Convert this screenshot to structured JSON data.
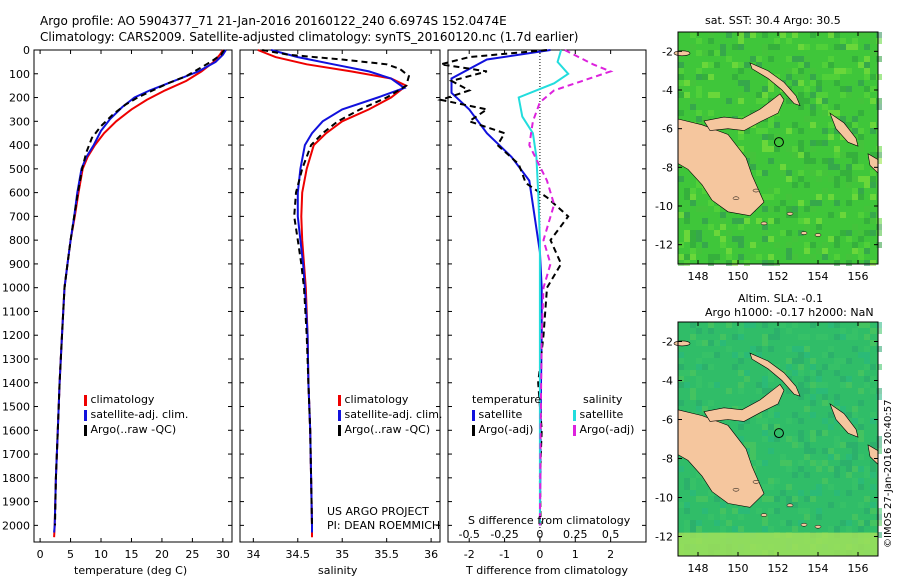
{
  "header": {
    "line1": "Argo profile: AO 5904377_71 21-Jan-2016 20160122_240 6.6974S 152.0474E",
    "line2": "Climatology: CARS2009. Satellite-adjusted climatology: synTS_20160120.nc (1.7d earlier)"
  },
  "chart_data": [
    {
      "type": "line",
      "id": "temperature",
      "xlabel": "temperature (deg C)",
      "xlim": [
        -1,
        31.5
      ],
      "ylim": [
        2070,
        0
      ],
      "xticks": [
        0,
        5,
        10,
        15,
        20,
        25,
        30
      ],
      "yticks": [
        0,
        100,
        200,
        300,
        400,
        500,
        600,
        700,
        800,
        900,
        1000,
        1100,
        1200,
        1300,
        1400,
        1500,
        1600,
        1700,
        1800,
        1900,
        2000
      ],
      "legend": [
        "climatology",
        "satellite-adj. clim.",
        "Argo(..raw -QC)"
      ],
      "series": [
        {
          "name": "climatology",
          "color": "#ee0000",
          "dash": "",
          "points": [
            [
              30.0,
              0
            ],
            [
              29.5,
              20
            ],
            [
              28.5,
              50
            ],
            [
              26.5,
              90
            ],
            [
              24.0,
              130
            ],
            [
              20.5,
              170
            ],
            [
              17.5,
              210
            ],
            [
              15.0,
              250
            ],
            [
              12.5,
              300
            ],
            [
              10.5,
              350
            ],
            [
              9.0,
              400
            ],
            [
              7.8,
              450
            ],
            [
              7.0,
              500
            ],
            [
              6.3,
              600
            ],
            [
              5.7,
              700
            ],
            [
              5.0,
              800
            ],
            [
              4.5,
              900
            ],
            [
              4.0,
              1000
            ],
            [
              3.6,
              1200
            ],
            [
              3.2,
              1400
            ],
            [
              2.9,
              1600
            ],
            [
              2.6,
              1800
            ],
            [
              2.4,
              2000
            ],
            [
              2.3,
              2050
            ]
          ]
        },
        {
          "name": "satellite-adj. clim.",
          "color": "#1111dd",
          "dash": "",
          "points": [
            [
              30.5,
              0
            ],
            [
              30.0,
              20
            ],
            [
              28.8,
              50
            ],
            [
              26.0,
              90
            ],
            [
              22.0,
              130
            ],
            [
              18.0,
              170
            ],
            [
              15.5,
              200
            ],
            [
              13.5,
              240
            ],
            [
              11.5,
              290
            ],
            [
              10.0,
              340
            ],
            [
              8.8,
              400
            ],
            [
              7.6,
              450
            ],
            [
              6.8,
              500
            ],
            [
              6.1,
              600
            ],
            [
              5.6,
              700
            ],
            [
              5.0,
              800
            ],
            [
              4.5,
              900
            ],
            [
              4.0,
              1000
            ],
            [
              3.6,
              1200
            ],
            [
              3.2,
              1400
            ],
            [
              2.9,
              1600
            ],
            [
              2.6,
              1800
            ],
            [
              2.4,
              2000
            ],
            [
              2.3,
              2030
            ]
          ]
        },
        {
          "name": "Argo(..raw -QC)",
          "color": "#000000",
          "dash": "6,4",
          "points": [
            [
              30.2,
              0
            ],
            [
              29.7,
              20
            ],
            [
              28.0,
              50
            ],
            [
              26.0,
              80
            ],
            [
              24.0,
              110
            ],
            [
              21.0,
              140
            ],
            [
              18.5,
              170
            ],
            [
              16.0,
              200
            ],
            [
              14.0,
              230
            ],
            [
              12.0,
              270
            ],
            [
              10.0,
              320
            ],
            [
              8.5,
              370
            ],
            [
              7.6,
              430
            ],
            [
              6.9,
              500
            ],
            [
              6.2,
              600
            ],
            [
              5.6,
              700
            ],
            [
              5.0,
              800
            ],
            [
              4.5,
              900
            ],
            [
              4.0,
              1000
            ],
            [
              3.6,
              1200
            ],
            [
              3.2,
              1400
            ],
            [
              2.9,
              1600
            ],
            [
              2.6,
              1800
            ],
            [
              2.45,
              2000
            ]
          ]
        }
      ]
    },
    {
      "type": "line",
      "id": "salinity",
      "xlabel": "salinity",
      "xlim": [
        33.85,
        36.1
      ],
      "ylim": [
        2070,
        0
      ],
      "xticks": [
        34,
        34.5,
        35,
        35.5,
        36
      ],
      "legend": [
        "climatology",
        "satellite-adj. clim.",
        "Argo(..raw -QC)"
      ],
      "series": [
        {
          "name": "climatology",
          "color": "#ee0000",
          "dash": "",
          "points": [
            [
              34.05,
              0
            ],
            [
              34.25,
              30
            ],
            [
              34.6,
              60
            ],
            [
              35.1,
              90
            ],
            [
              35.55,
              120
            ],
            [
              35.72,
              150
            ],
            [
              35.55,
              200
            ],
            [
              35.3,
              250
            ],
            [
              35.0,
              300
            ],
            [
              34.82,
              350
            ],
            [
              34.68,
              400
            ],
            [
              34.6,
              500
            ],
            [
              34.55,
              600
            ],
            [
              34.54,
              700
            ],
            [
              34.55,
              800
            ],
            [
              34.57,
              900
            ],
            [
              34.59,
              1000
            ],
            [
              34.61,
              1200
            ],
            [
              34.62,
              1400
            ],
            [
              34.64,
              1600
            ],
            [
              34.65,
              1800
            ],
            [
              34.66,
              2000
            ],
            [
              34.66,
              2050
            ]
          ]
        },
        {
          "name": "satellite-adj. clim.",
          "color": "#1111dd",
          "dash": "",
          "points": [
            [
              34.2,
              0
            ],
            [
              34.5,
              30
            ],
            [
              34.9,
              60
            ],
            [
              35.3,
              90
            ],
            [
              35.55,
              120
            ],
            [
              35.7,
              160
            ],
            [
              35.4,
              200
            ],
            [
              35.0,
              250
            ],
            [
              34.78,
              300
            ],
            [
              34.66,
              350
            ],
            [
              34.58,
              400
            ],
            [
              34.53,
              500
            ],
            [
              34.5,
              600
            ],
            [
              34.5,
              700
            ],
            [
              34.53,
              800
            ],
            [
              34.56,
              900
            ],
            [
              34.58,
              1000
            ],
            [
              34.61,
              1200
            ],
            [
              34.62,
              1400
            ],
            [
              34.64,
              1600
            ],
            [
              34.65,
              1800
            ],
            [
              34.66,
              2000
            ],
            [
              34.66,
              2030
            ]
          ]
        },
        {
          "name": "Argo(..raw -QC)",
          "color": "#000000",
          "dash": "6,4",
          "points": [
            [
              34.1,
              0
            ],
            [
              34.4,
              20
            ],
            [
              35.0,
              40
            ],
            [
              35.5,
              60
            ],
            [
              35.65,
              80
            ],
            [
              35.75,
              110
            ],
            [
              35.72,
              150
            ],
            [
              35.5,
              200
            ],
            [
              35.2,
              250
            ],
            [
              34.95,
              300
            ],
            [
              34.78,
              350
            ],
            [
              34.65,
              400
            ],
            [
              34.55,
              500
            ],
            [
              34.48,
              600
            ],
            [
              34.46,
              700
            ],
            [
              34.5,
              800
            ],
            [
              34.54,
              900
            ],
            [
              34.57,
              1000
            ],
            [
              34.6,
              1200
            ],
            [
              34.62,
              1400
            ],
            [
              34.64,
              1600
            ],
            [
              34.65,
              1800
            ],
            [
              34.66,
              2000
            ]
          ]
        }
      ]
    },
    {
      "type": "line",
      "id": "difference",
      "xlabel": "T difference from climatology",
      "xlabel_top": "S difference from climatology",
      "xlim": [
        -2.6,
        3.0
      ],
      "ylim": [
        2070,
        0
      ],
      "xticks": [
        -2,
        -1,
        0,
        1,
        2
      ],
      "xticks_top": [
        "-0.5",
        "-0.25",
        "0",
        "0.25",
        "0.5"
      ],
      "legend_temperature_title": "temperature",
      "legend_salinity_title": "salinity",
      "legend": [
        "satellite",
        "Argo(-adj)",
        "satellite",
        "Argo(-adj)"
      ],
      "series": [
        {
          "name": "T satellite",
          "color": "#1111dd",
          "dash": "",
          "points": [
            [
              0.3,
              0
            ],
            [
              -1.5,
              40
            ],
            [
              -2.5,
              120
            ],
            [
              -2.5,
              180
            ],
            [
              -2.0,
              250
            ],
            [
              -1.5,
              350
            ],
            [
              -0.8,
              450
            ],
            [
              -0.3,
              550
            ],
            [
              -0.15,
              700
            ],
            [
              0.0,
              850
            ],
            [
              0.05,
              1000
            ],
            [
              0.05,
              1200
            ],
            [
              0.03,
              1400
            ],
            [
              0.02,
              1600
            ],
            [
              0.01,
              1800
            ],
            [
              0.0,
              2000
            ]
          ]
        },
        {
          "name": "T Argo(-adj)",
          "color": "#000000",
          "dash": "6,4",
          "points": [
            [
              0.2,
              0
            ],
            [
              -2.0,
              30
            ],
            [
              -2.8,
              60
            ],
            [
              -1.5,
              90
            ],
            [
              -2.5,
              130
            ],
            [
              -2.0,
              170
            ],
            [
              -2.8,
              210
            ],
            [
              -1.5,
              250
            ],
            [
              -2.0,
              300
            ],
            [
              -1.0,
              350
            ],
            [
              -1.2,
              400
            ],
            [
              -0.6,
              480
            ],
            [
              -0.4,
              560
            ],
            [
              0.2,
              620
            ],
            [
              0.8,
              700
            ],
            [
              0.3,
              800
            ],
            [
              0.6,
              900
            ],
            [
              0.2,
              1000
            ],
            [
              0.1,
              1200
            ],
            [
              -0.05,
              1400
            ],
            [
              0.05,
              1600
            ],
            [
              0.0,
              1800
            ],
            [
              0.02,
              2000
            ]
          ]
        },
        {
          "name": "S satellite",
          "color": "#22dddd",
          "dash": "",
          "points": [
            [
              0.6,
              0
            ],
            [
              0.5,
              50
            ],
            [
              0.8,
              100
            ],
            [
              0.4,
              140
            ],
            [
              -0.6,
              200
            ],
            [
              -0.5,
              280
            ],
            [
              -0.2,
              350
            ],
            [
              -0.1,
              450
            ],
            [
              -0.05,
              600
            ],
            [
              0.0,
              800
            ],
            [
              0.0,
              1000
            ],
            [
              0.0,
              1400
            ],
            [
              0.0,
              1800
            ],
            [
              0.0,
              2000
            ]
          ]
        },
        {
          "name": "S Argo(-adj)",
          "color": "#dd22dd",
          "dash": "6,4",
          "points": [
            [
              0.7,
              0
            ],
            [
              1.5,
              60
            ],
            [
              2.0,
              90
            ],
            [
              1.2,
              130
            ],
            [
              0.4,
              170
            ],
            [
              0.0,
              220
            ],
            [
              -0.2,
              300
            ],
            [
              -0.3,
              400
            ],
            [
              0.2,
              550
            ],
            [
              0.4,
              650
            ],
            [
              0.1,
              800
            ],
            [
              0.3,
              900
            ],
            [
              0.1,
              1000
            ],
            [
              0.05,
              1200
            ],
            [
              0.02,
              1600
            ],
            [
              0.0,
              2000
            ]
          ]
        }
      ]
    },
    {
      "type": "heatmap",
      "id": "sst_map",
      "title": "sat. SST: 30.4  Argo: 30.5",
      "xticks": [
        148,
        150,
        152,
        154,
        156
      ],
      "yticks": [
        -2,
        -4,
        -6,
        -8,
        -10,
        -12
      ],
      "xlim": [
        147,
        157
      ],
      "ylim": [
        -13,
        -1
      ],
      "float_position": [
        152.0474,
        -6.6974
      ]
    },
    {
      "type": "heatmap",
      "id": "sla_map",
      "title": "Altim. SLA: -0.1",
      "subtitle": "Argo h1000: -0.17  h2000: NaN",
      "xticks": [
        148,
        150,
        152,
        154,
        156
      ],
      "yticks": [
        -2,
        -4,
        -6,
        -8,
        -10,
        -12
      ],
      "xlim": [
        147,
        157
      ],
      "ylim": [
        -13,
        -1
      ],
      "float_position": [
        152.0474,
        -6.6974
      ]
    }
  ],
  "annotations": {
    "project_line1": "US ARGO PROJECT",
    "project_line2": "PI: DEAN ROEMMICH",
    "credit": "©IMOS 27-Jan-2016 20:40:57"
  },
  "colors": {
    "land": "#f5c69e",
    "ocean_sst": "#3fc63a",
    "ocean_sla": "#30bd68",
    "marker": "#000000"
  }
}
